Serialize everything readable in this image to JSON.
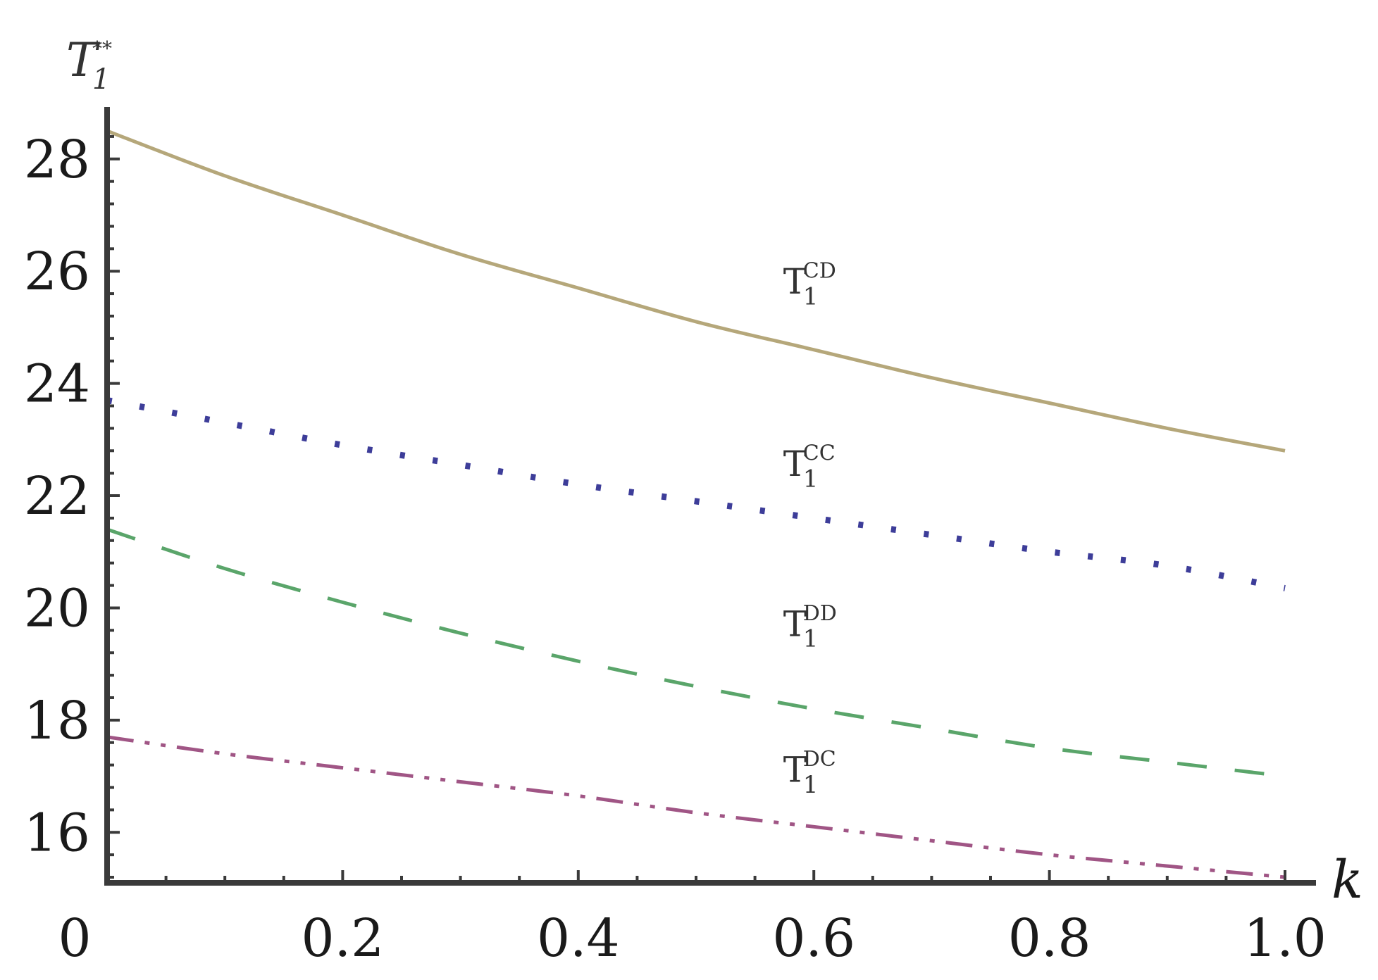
{
  "chart_data": {
    "type": "line",
    "title": "",
    "xlabel": "k",
    "ylabel": {
      "base": "T",
      "sub": "1",
      "sup": "**"
    },
    "xlim": [
      0,
      1
    ],
    "ylim": [
      15.1,
      28.7
    ],
    "x_ticks": [
      0,
      0.2,
      0.4,
      0.6,
      0.8,
      1.0
    ],
    "x_tick_labels": [
      "0",
      "0.2",
      "0.4",
      "0.6",
      "0.8",
      "1.0"
    ],
    "y_ticks": [
      16,
      18,
      20,
      22,
      24,
      26,
      28
    ],
    "y_tick_labels": [
      "16",
      "18",
      "20",
      "22",
      "24",
      "26",
      "28"
    ],
    "grid": false,
    "legend": "none",
    "x": [
      0,
      0.1,
      0.2,
      0.3,
      0.4,
      0.5,
      0.6,
      0.7,
      0.8,
      0.9,
      1.0
    ],
    "series": [
      {
        "name": {
          "base": "T",
          "sub": "1",
          "sup": "CD"
        },
        "style": "solid",
        "color": "#b5a77a",
        "values": [
          28.5,
          27.7,
          27.0,
          26.3,
          25.7,
          25.1,
          24.6,
          24.1,
          23.65,
          23.2,
          22.8
        ],
        "label_at": {
          "x": 0.58,
          "y": 25.6
        }
      },
      {
        "name": {
          "base": "T",
          "sub": "1",
          "sup": "CC"
        },
        "style": "dotted",
        "color": "#3d3d99",
        "values": [
          23.7,
          23.3,
          22.9,
          22.55,
          22.2,
          21.9,
          21.6,
          21.3,
          21.0,
          20.75,
          20.35
        ],
        "label_at": {
          "x": 0.58,
          "y": 22.35
        }
      },
      {
        "name": {
          "base": "T",
          "sub": "1",
          "sup": "DD"
        },
        "style": "dashed",
        "color": "#5aa56a",
        "values": [
          21.4,
          20.7,
          20.1,
          19.55,
          19.05,
          18.6,
          18.2,
          17.85,
          17.5,
          17.25,
          17.0
        ],
        "label_at": {
          "x": 0.58,
          "y": 19.5
        }
      },
      {
        "name": {
          "base": "T",
          "sub": "1",
          "sup": "DC"
        },
        "style": "dashdot",
        "color": "#a05585",
        "values": [
          17.7,
          17.4,
          17.15,
          16.9,
          16.65,
          16.35,
          16.1,
          15.85,
          15.6,
          15.4,
          15.2
        ],
        "label_at": {
          "x": 0.58,
          "y": 16.9
        }
      }
    ]
  }
}
